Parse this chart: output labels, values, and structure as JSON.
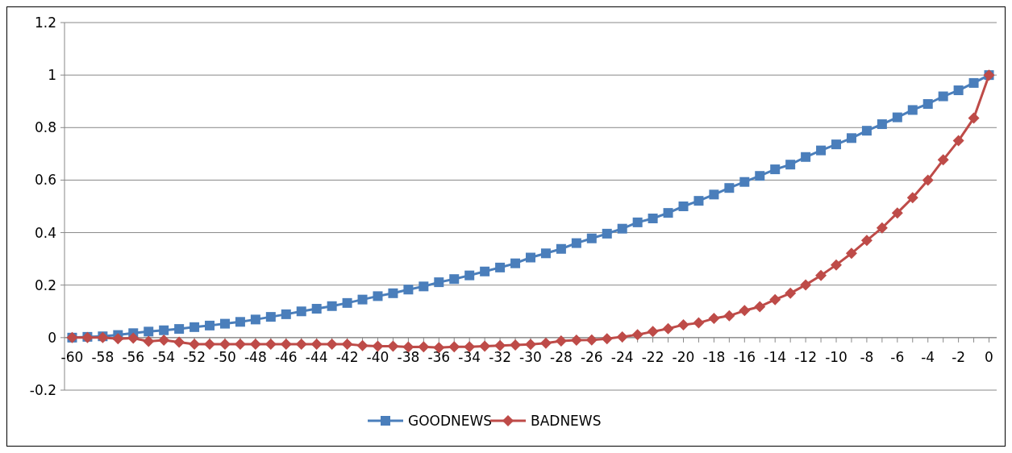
{
  "chart_data": {
    "type": "line",
    "categories": [
      "-60",
      null,
      "-58",
      null,
      "-56",
      null,
      "-54",
      null,
      "-52",
      null,
      "-50",
      null,
      "-48",
      null,
      "-46",
      null,
      "-44",
      null,
      "-42",
      null,
      "-40",
      null,
      "-38",
      null,
      "-36",
      null,
      "-34",
      null,
      "-32",
      null,
      "-30",
      null,
      "-28",
      null,
      "-26",
      null,
      "-24",
      null,
      "-22",
      null,
      "-20",
      null,
      "-18",
      null,
      "-16",
      null,
      "-14",
      null,
      "-12",
      null,
      "-10",
      null,
      "-8",
      null,
      "-6",
      null,
      "-4",
      null,
      "-2",
      null,
      "0"
    ],
    "series": [
      {
        "name": "GOODNEWS",
        "color": "#4a7ebb",
        "marker": "square",
        "values": [
          0,
          0.003,
          0.005,
          0.01,
          0.017,
          0.023,
          0.028,
          0.033,
          0.04,
          0.046,
          0.053,
          0.06,
          0.069,
          0.079,
          0.089,
          0.1,
          0.11,
          0.12,
          0.132,
          0.145,
          0.158,
          0.169,
          0.183,
          0.195,
          0.211,
          0.223,
          0.237,
          0.252,
          0.267,
          0.283,
          0.305,
          0.321,
          0.338,
          0.36,
          0.378,
          0.396,
          0.415,
          0.439,
          0.454,
          0.475,
          0.5,
          0.521,
          0.545,
          0.57,
          0.593,
          0.616,
          0.641,
          0.659,
          0.688,
          0.713,
          0.736,
          0.76,
          0.788,
          0.813,
          0.839,
          0.867,
          0.89,
          0.919,
          0.942,
          0.97,
          1
        ]
      },
      {
        "name": "BADNEWS",
        "color": "#be4b48",
        "marker": "diamond",
        "values": [
          0,
          0,
          0,
          -0.004,
          -0.002,
          -0.014,
          -0.01,
          -0.017,
          -0.025,
          -0.025,
          -0.025,
          -0.025,
          -0.025,
          -0.025,
          -0.025,
          -0.025,
          -0.025,
          -0.025,
          -0.025,
          -0.03,
          -0.033,
          -0.033,
          -0.036,
          -0.035,
          -0.038,
          -0.035,
          -0.035,
          -0.033,
          -0.03,
          -0.028,
          -0.026,
          -0.021,
          -0.013,
          -0.01,
          -0.009,
          -0.004,
          0.003,
          0.011,
          0.023,
          0.034,
          0.049,
          0.056,
          0.073,
          0.083,
          0.103,
          0.118,
          0.145,
          0.169,
          0.201,
          0.237,
          0.277,
          0.321,
          0.37,
          0.418,
          0.475,
          0.533,
          0.6,
          0.677,
          0.75,
          0.836,
          1
        ]
      }
    ],
    "ylim": [
      -0.2,
      1.2
    ],
    "yticks": [
      -0.2,
      0,
      0.2,
      0.4,
      0.6,
      0.8,
      1,
      1.2
    ],
    "grid": "y",
    "legend": "bottom"
  }
}
